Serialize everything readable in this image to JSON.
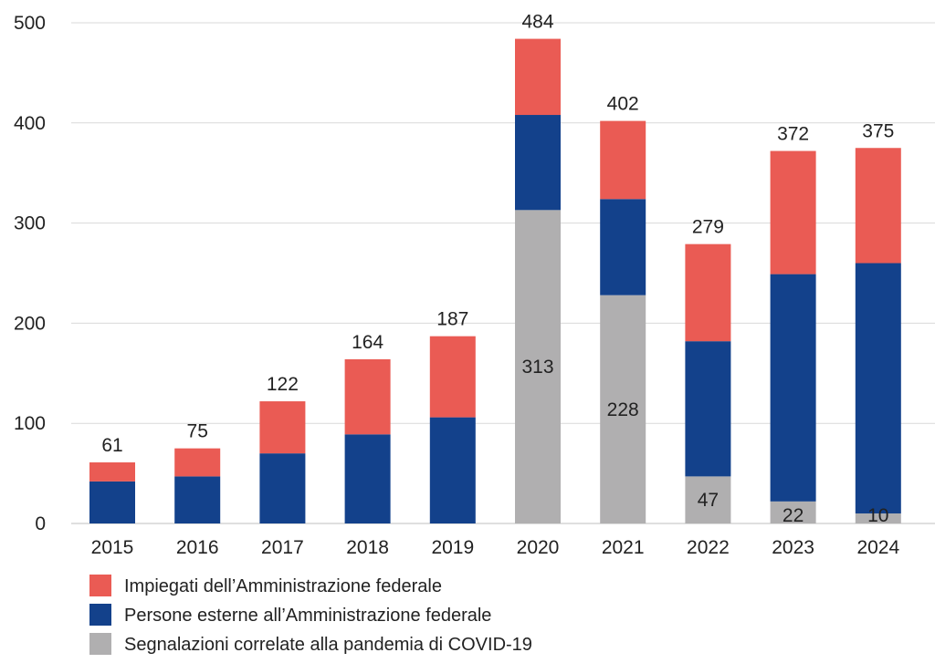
{
  "chart_data": {
    "type": "bar",
    "stacked": true,
    "categories": [
      "2015",
      "2016",
      "2017",
      "2018",
      "2019",
      "2020",
      "2021",
      "2022",
      "2023",
      "2024"
    ],
    "series": [
      {
        "name": "Segnalazioni correlate alla pandemia di COVID-19",
        "color": "#b0afb0",
        "values": [
          0,
          0,
          0,
          0,
          0,
          313,
          228,
          47,
          22,
          10
        ],
        "labels": [
          "",
          "",
          "",
          "",
          "",
          "313",
          "228",
          "47",
          "22",
          "10"
        ]
      },
      {
        "name": "Persone esterne all’Amministrazione federale",
        "color": "#13418b",
        "values": [
          42,
          47,
          70,
          89,
          106,
          95,
          96,
          135,
          227,
          250
        ]
      },
      {
        "name": "Impiegati dell’Amministrazione federale",
        "color": "#ea5b54",
        "values": [
          19,
          28,
          52,
          75,
          81,
          76,
          78,
          97,
          123,
          115
        ]
      }
    ],
    "totals": [
      "61",
      "75",
      "122",
      "164",
      "187",
      "484",
      "402",
      "279",
      "372",
      "375"
    ],
    "y_ticks": [
      "0",
      "100",
      "200",
      "300",
      "400",
      "500"
    ],
    "ylim": [
      0,
      500
    ],
    "grid": true,
    "legend_position": "bottom-left",
    "legend": [
      {
        "label": "Impiegati dell’Amministrazione federale",
        "color": "#ea5b54"
      },
      {
        "label": "Persone esterne all’Amministrazione federale",
        "color": "#13418b"
      },
      {
        "label": "Segnalazioni correlate alla pandemia di COVID-19",
        "color": "#b0afb0"
      }
    ]
  }
}
